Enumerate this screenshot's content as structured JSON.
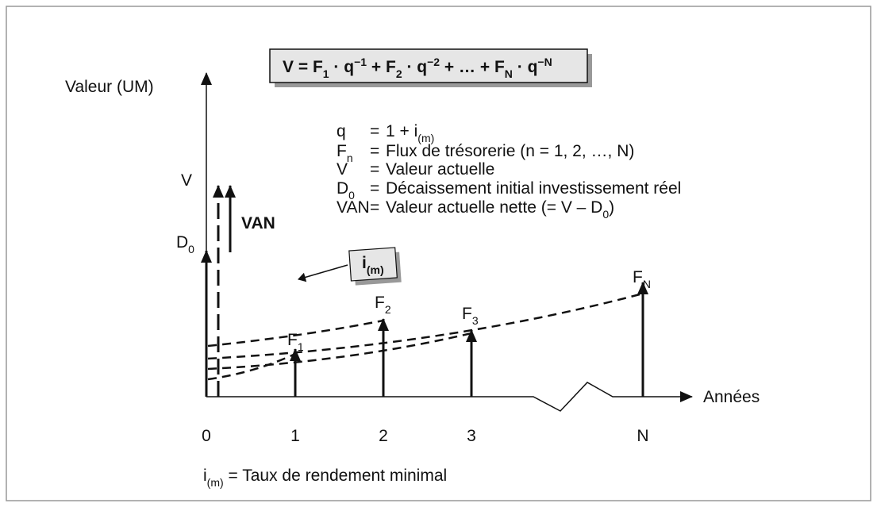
{
  "formula": [
    {
      "text": "V  =  F"
    },
    {
      "text": "1",
      "style": "sub"
    },
    {
      "text": " · q"
    },
    {
      "text": "−1",
      "style": "sup"
    },
    {
      "text": " + F"
    },
    {
      "text": "2",
      "style": "sub"
    },
    {
      "text": " · q"
    },
    {
      "text": "−2",
      "style": "sup"
    },
    {
      "text": " + … + F"
    },
    {
      "text": "N",
      "style": "sub"
    },
    {
      "text": " · q"
    },
    {
      "text": "−N",
      "style": "sup"
    }
  ],
  "definitions": [
    {
      "symbol": [
        {
          "text": "q"
        }
      ],
      "eq": "=",
      "text": [
        {
          "text": "1 + i"
        },
        {
          "text": "(m)",
          "style": "sub"
        }
      ]
    },
    {
      "symbol": [
        {
          "text": "F"
        },
        {
          "text": "n",
          "style": "sub"
        }
      ],
      "eq": "=",
      "text": [
        {
          "text": "Flux de trésorerie (n = 1, 2, …, N)"
        }
      ]
    },
    {
      "symbol": [
        {
          "text": "V"
        }
      ],
      "eq": "=",
      "text": [
        {
          "text": "Valeur actuelle"
        }
      ]
    },
    {
      "symbol": [
        {
          "text": "D"
        },
        {
          "text": "0",
          "style": "sub"
        }
      ],
      "eq": "=",
      "text": [
        {
          "text": "Décaissement initial investissement réel"
        }
      ]
    },
    {
      "symbol": [
        {
          "text": "VAN"
        }
      ],
      "eq": "=",
      "text": [
        {
          "text": "Valeur actuelle nette (= V – D"
        },
        {
          "text": "0",
          "style": "sub"
        },
        {
          "text": ")"
        }
      ]
    }
  ],
  "axes": {
    "y_label": "Valeur (UM)",
    "x_label": "Années",
    "x_ticks": [
      "0",
      "1",
      "2",
      "3",
      "N"
    ]
  },
  "labels": {
    "F1": [
      {
        "text": "F"
      },
      {
        "text": "1",
        "style": "sub"
      }
    ],
    "F2": [
      {
        "text": "F"
      },
      {
        "text": "2",
        "style": "sub"
      }
    ],
    "F3": [
      {
        "text": "F"
      },
      {
        "text": "3",
        "style": "sub"
      }
    ],
    "FN": [
      {
        "text": "F"
      },
      {
        "text": "N",
        "style": "sub"
      }
    ],
    "V": [
      {
        "text": "V"
      }
    ],
    "VAN": [
      {
        "text": "VAN"
      }
    ],
    "D0": [
      {
        "text": "D"
      },
      {
        "text": "0",
        "style": "sub"
      }
    ],
    "rate": [
      {
        "text": "i"
      },
      {
        "text": "(m)",
        "style": "sub"
      }
    ]
  },
  "footnote": [
    {
      "text": "i"
    },
    {
      "text": "(m)",
      "style": "sub"
    },
    {
      "text": " = Taux de rendement minimal"
    }
  ]
}
